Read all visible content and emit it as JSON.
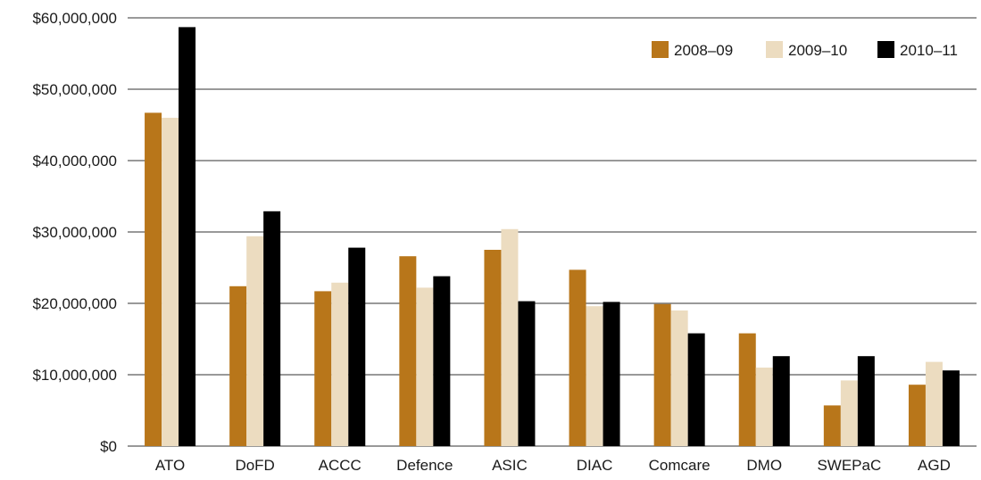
{
  "chart_data": {
    "type": "bar",
    "categories": [
      "ATO",
      "DoFD",
      "ACCC",
      "Defence",
      "ASIC",
      "DIAC",
      "Comcare",
      "DMO",
      "SWEPaC",
      "AGD"
    ],
    "series": [
      {
        "name": "2008–09",
        "color": "#b8761a",
        "values": [
          46700000,
          22400000,
          21700000,
          26600000,
          27500000,
          24700000,
          19900000,
          15800000,
          5700000,
          8600000
        ]
      },
      {
        "name": "2009–10",
        "color": "#ecdcc0",
        "values": [
          46000000,
          29400000,
          22900000,
          22200000,
          30400000,
          19600000,
          19000000,
          11000000,
          9200000,
          11800000
        ]
      },
      {
        "name": "2010–11",
        "color": "#000000",
        "values": [
          58700000,
          32900000,
          27800000,
          23800000,
          20300000,
          20200000,
          15800000,
          12600000,
          12600000,
          10600000
        ]
      }
    ],
    "ylim": [
      0,
      60000000
    ],
    "yticks": [
      0,
      10000000,
      20000000,
      30000000,
      40000000,
      50000000,
      60000000
    ],
    "ytick_labels": [
      "$0",
      "$10,000,000",
      "$20,000,000",
      "$30,000,000",
      "$40,000,000",
      "$50,000,000",
      "$60,000,000"
    ],
    "grid": true,
    "legend_position": "top-right",
    "title": "",
    "xlabel": "",
    "ylabel": ""
  }
}
